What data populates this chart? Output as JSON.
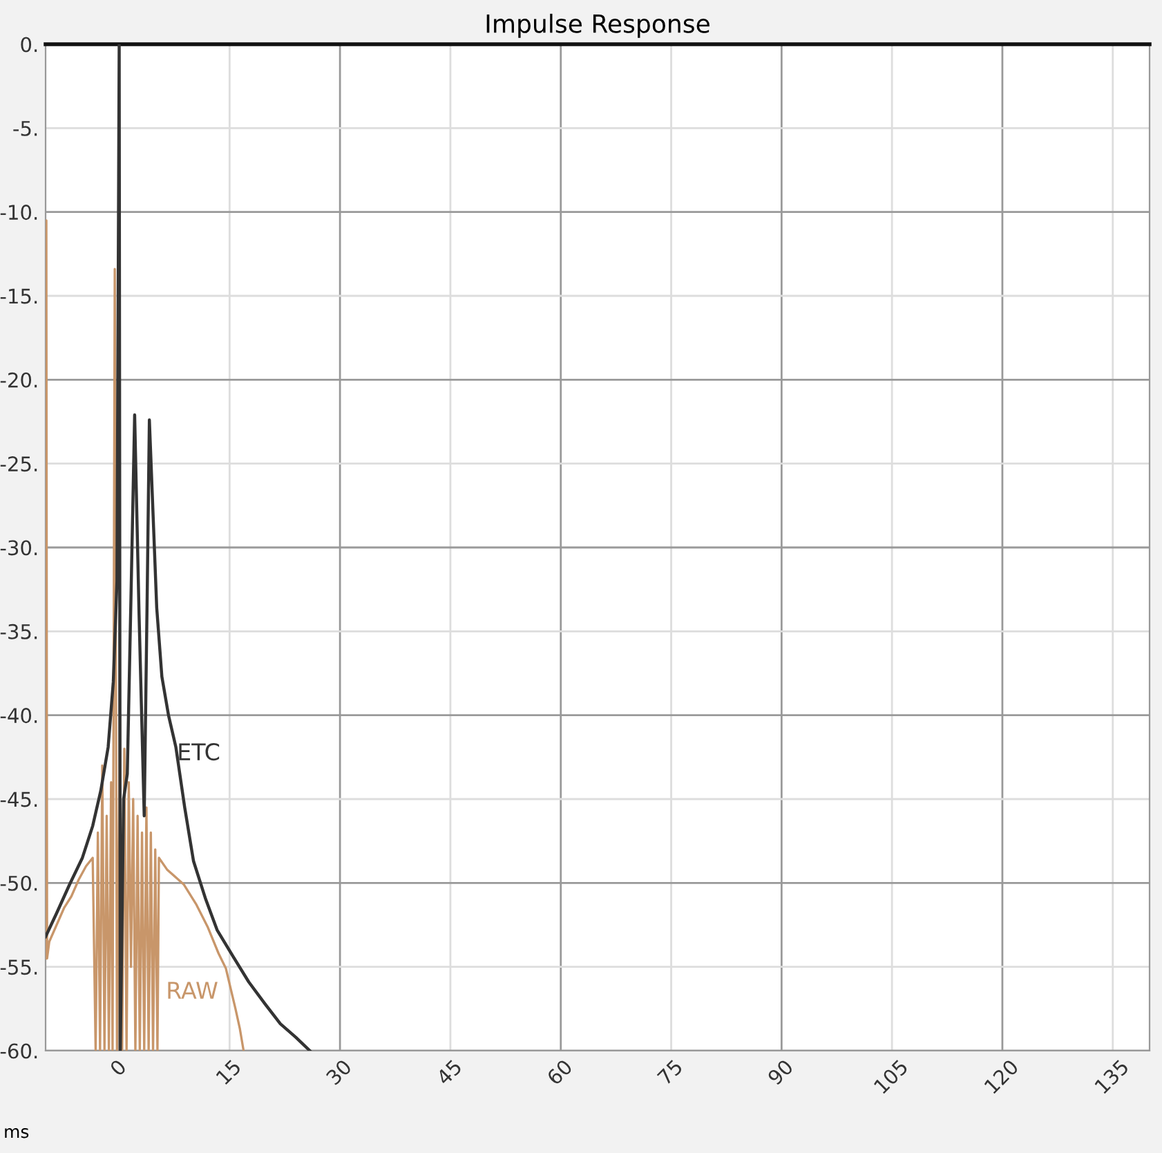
{
  "chart_data": {
    "type": "line",
    "title": "Impulse Response",
    "xlabel": "ms",
    "xlim": [
      -10,
      140
    ],
    "xticks": [
      0,
      15,
      30,
      45,
      60,
      75,
      90,
      105,
      120,
      135
    ],
    "ylim": [
      -60,
      0
    ],
    "yticks": [
      {
        "value": 0,
        "label": "0."
      },
      {
        "value": -5,
        "label": "-5."
      },
      {
        "value": -10,
        "label": "-10."
      },
      {
        "value": -15,
        "label": "-15."
      },
      {
        "value": -20,
        "label": "-20."
      },
      {
        "value": -25,
        "label": "-25."
      },
      {
        "value": -30,
        "label": "-30."
      },
      {
        "value": -35,
        "label": "-35."
      },
      {
        "value": -40,
        "label": "-40."
      },
      {
        "value": -45,
        "label": "-45."
      },
      {
        "value": -50,
        "label": "-50."
      },
      {
        "value": -55,
        "label": "-55."
      },
      {
        "value": -60,
        "label": "-60."
      }
    ],
    "grid": true,
    "legend": false,
    "marker": "none",
    "line_style": "solid",
    "series": [
      {
        "name": "RAW",
        "color": "#c8966a",
        "x": [
          -10,
          -9.9,
          -9.8,
          -9.5,
          -8.5,
          -7.5,
          -6.5,
          -5.5,
          -4.5,
          -3.6,
          -3.2,
          -2.9,
          -2.6,
          -2.3,
          -2.0,
          -1.7,
          -1.4,
          -1.1,
          -0.9,
          -0.6,
          -0.3,
          0.1,
          0.4,
          0.7,
          1.0,
          1.3,
          1.6,
          1.9,
          2.2,
          2.5,
          2.8,
          3.1,
          3.4,
          3.7,
          4.0,
          4.3,
          4.6,
          4.9,
          5.2,
          5.4,
          6.5,
          8.8,
          10.5,
          12,
          13.5,
          14.5,
          15.8,
          16.4,
          16.9
        ],
        "values": [
          -54.5,
          -10.5,
          -54.5,
          -53.5,
          -52.5,
          -51.5,
          -50.8,
          -49.8,
          -49.0,
          -48.5,
          -60,
          -47,
          -60,
          -43,
          -60,
          -46,
          -60,
          -44,
          -60,
          -13.4,
          -60,
          -40,
          -60,
          -42,
          -60,
          -44,
          -55,
          -45,
          -60,
          -46,
          -60,
          -47,
          -60,
          -45.5,
          -60,
          -47,
          -60,
          -48,
          -60,
          -48.5,
          -49.2,
          -50.1,
          -51.3,
          -52.6,
          -54.2,
          -55.1,
          -57.5,
          -58.7,
          -60
        ]
      },
      {
        "name": "ETC",
        "color": "#333333",
        "x": [
          -10,
          -8.5,
          -6.75,
          -5,
          -3.6,
          -2.5,
          -1.5,
          -0.8,
          -0.3,
          0,
          0.15,
          0.3,
          0.6,
          1.1,
          1.6,
          2.1,
          2.7,
          3.4,
          3.8,
          4.1,
          4.6,
          5.1,
          5.8,
          6.7,
          7.7,
          8.9,
          10.1,
          11.7,
          13.3,
          15.5,
          17.6,
          19.8,
          21.9,
          24,
          25.9
        ],
        "values": [
          -53.2,
          -51.8,
          -50.1,
          -48.5,
          -46.6,
          -44.5,
          -41.9,
          -38,
          -32,
          0,
          -60,
          -55,
          -45,
          -43.5,
          -33,
          -22.1,
          -34,
          -46,
          -33,
          -22.4,
          -28,
          -33.6,
          -37.7,
          -40,
          -41.9,
          -45.5,
          -48.7,
          -50.9,
          -52.8,
          -54.4,
          -55.9,
          -57.2,
          -58.4,
          -59.2,
          -60
        ]
      }
    ]
  }
}
